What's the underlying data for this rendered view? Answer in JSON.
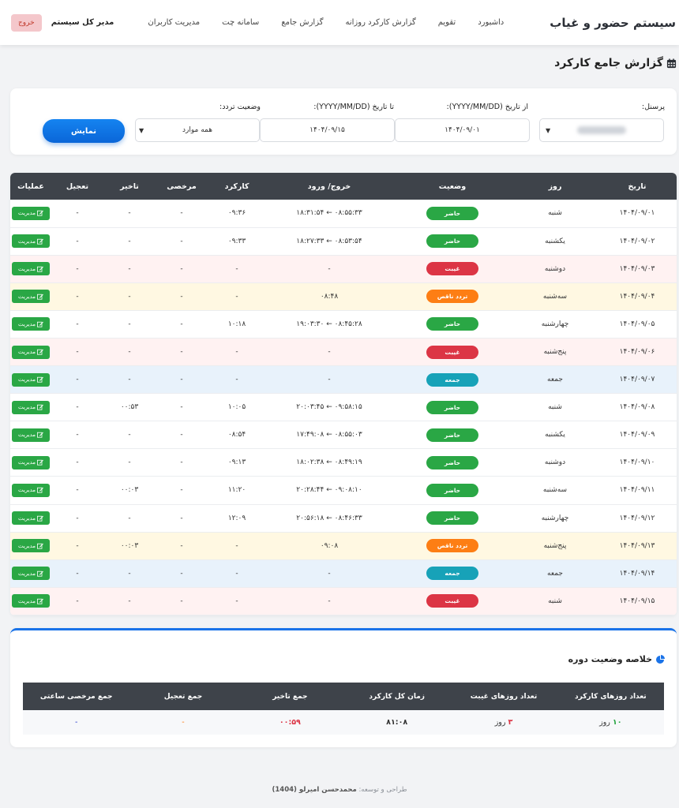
{
  "nav": {
    "brand": "سیستم حضور و غیاب",
    "links": [
      "داشبورد",
      "تقویم",
      "گزارش کارکرد روزانه",
      "گزارش جامع",
      "سامانه چت",
      "مدیریت کاربران"
    ],
    "user": "مدیر کل سیستم",
    "logout": "خروج"
  },
  "page": {
    "title": "گزارش جامع کارکرد"
  },
  "filters": {
    "personnel_label": "پرسنل:",
    "from_label": "از تاریخ (YYYY/MM/DD):",
    "from_value": "۱۴۰۴/۰۹/۰۱",
    "to_label": "تا تاریخ (YYYY/MM/DD):",
    "to_value": "۱۴۰۴/۰۹/۱۵",
    "status_label": "وضعیت تردد:",
    "status_value": "همه موارد",
    "show_button": "نمایش"
  },
  "table": {
    "headers": [
      "تاریخ",
      "روز",
      "وضعیت",
      "خروج/ ورود",
      "کارکرد",
      "مرخصی",
      "تاخیر",
      "تعجیل",
      "عملیات"
    ],
    "manage_label": "مدیریت",
    "rows": [
      {
        "date": "۱۴۰۴/۰۹/۰۱",
        "day": "شنبه",
        "status": "حاضر",
        "kind": "present",
        "io": "۰۸:۵۵:۳۳ ← ۱۸:۳۱:۵۴",
        "work": "۰۹:۳۶",
        "leave": "-",
        "late": "-",
        "early": "-"
      },
      {
        "date": "۱۴۰۴/۰۹/۰۲",
        "day": "یکشنبه",
        "status": "حاضر",
        "kind": "present",
        "io": "۰۸:۵۳:۵۴ ← ۱۸:۲۷:۳۳",
        "work": "۰۹:۳۳",
        "leave": "-",
        "late": "-",
        "early": "-"
      },
      {
        "date": "۱۴۰۴/۰۹/۰۳",
        "day": "دوشنبه",
        "status": "غیبت",
        "kind": "absent",
        "io": "-",
        "work": "-",
        "leave": "-",
        "late": "-",
        "early": "-"
      },
      {
        "date": "۱۴۰۴/۰۹/۰۴",
        "day": "سه‌شنبه",
        "status": "تردد ناقص",
        "kind": "partial",
        "io": "۰۸:۴۸",
        "work": "-",
        "leave": "-",
        "late": "-",
        "early": "-"
      },
      {
        "date": "۱۴۰۴/۰۹/۰۵",
        "day": "چهارشنبه",
        "status": "حاضر",
        "kind": "present",
        "io": "۰۸:۴۵:۲۸ ← ۱۹:۰۳:۳۰",
        "work": "۱۰:۱۸",
        "leave": "-",
        "late": "-",
        "early": "-"
      },
      {
        "date": "۱۴۰۴/۰۹/۰۶",
        "day": "پنج‌شنبه",
        "status": "غیبت",
        "kind": "absent",
        "io": "-",
        "work": "-",
        "leave": "-",
        "late": "-",
        "early": "-"
      },
      {
        "date": "۱۴۰۴/۰۹/۰۷",
        "day": "جمعه",
        "status": "جمعه",
        "kind": "friday",
        "io": "-",
        "work": "-",
        "leave": "-",
        "late": "-",
        "early": "-"
      },
      {
        "date": "۱۴۰۴/۰۹/۰۸",
        "day": "شنبه",
        "status": "حاضر",
        "kind": "present",
        "io": "۰۹:۵۸:۱۵ ← ۲۰:۰۳:۴۵",
        "work": "۱۰:۰۵",
        "leave": "-",
        "late": "۰۰:۵۳",
        "early": "-"
      },
      {
        "date": "۱۴۰۴/۰۹/۰۹",
        "day": "یکشنبه",
        "status": "حاضر",
        "kind": "present",
        "io": "۰۸:۵۵:۰۳ ← ۱۷:۴۹:۰۸",
        "work": "۰۸:۵۴",
        "leave": "-",
        "late": "-",
        "early": "-"
      },
      {
        "date": "۱۴۰۴/۰۹/۱۰",
        "day": "دوشنبه",
        "status": "حاضر",
        "kind": "present",
        "io": "۰۸:۴۹:۱۹ ← ۱۸:۰۲:۳۸",
        "work": "۰۹:۱۳",
        "leave": "-",
        "late": "-",
        "early": "-"
      },
      {
        "date": "۱۴۰۴/۰۹/۱۱",
        "day": "سه‌شنبه",
        "status": "حاضر",
        "kind": "present",
        "io": "۰۹:۰۸:۱۰ ← ۲۰:۲۸:۴۴",
        "work": "۱۱:۲۰",
        "leave": "-",
        "late": "۰۰:۰۳",
        "early": "-"
      },
      {
        "date": "۱۴۰۴/۰۹/۱۲",
        "day": "چهارشنبه",
        "status": "حاضر",
        "kind": "present",
        "io": "۰۸:۴۶:۳۳ ← ۲۰:۵۶:۱۸",
        "work": "۱۲:۰۹",
        "leave": "-",
        "late": "-",
        "early": "-"
      },
      {
        "date": "۱۴۰۴/۰۹/۱۳",
        "day": "پنج‌شنبه",
        "status": "تردد ناقص",
        "kind": "partial",
        "io": "۰۹:۰۸",
        "work": "-",
        "leave": "-",
        "late": "۰۰:۰۳",
        "early": "-"
      },
      {
        "date": "۱۴۰۴/۰۹/۱۴",
        "day": "جمعه",
        "status": "جمعه",
        "kind": "friday",
        "io": "-",
        "work": "-",
        "leave": "-",
        "late": "-",
        "early": "-"
      },
      {
        "date": "۱۴۰۴/۰۹/۱۵",
        "day": "شنبه",
        "status": "غیبت",
        "kind": "absent",
        "io": "-",
        "work": "-",
        "leave": "-",
        "late": "-",
        "early": "-"
      }
    ]
  },
  "summary": {
    "title": "خلاصه وضعیت دوره",
    "headers": [
      "تعداد روزهای کارکرد",
      "تعداد روزهای غیبت",
      "زمان کل کارکرد",
      "جمع تاخیر",
      "جمع تعجیل",
      "جمع مرخصی ساعتی"
    ],
    "work_days": "۱۰",
    "absent_days": "۳",
    "day_unit": "روز",
    "total_work": "۸۱:۰۸",
    "total_late": "۰۰:۵۹",
    "total_early": "-",
    "total_hourly_leave": "-"
  },
  "footer": {
    "prefix": "طراحی و توسعه:",
    "author": "محمدحسن امیرلو (1404)"
  },
  "colors": {
    "present": "#2aa745",
    "absent": "#dc3545",
    "partial": "#fd7e14",
    "friday": "#17a2b8",
    "primary": "#0a66d8"
  }
}
